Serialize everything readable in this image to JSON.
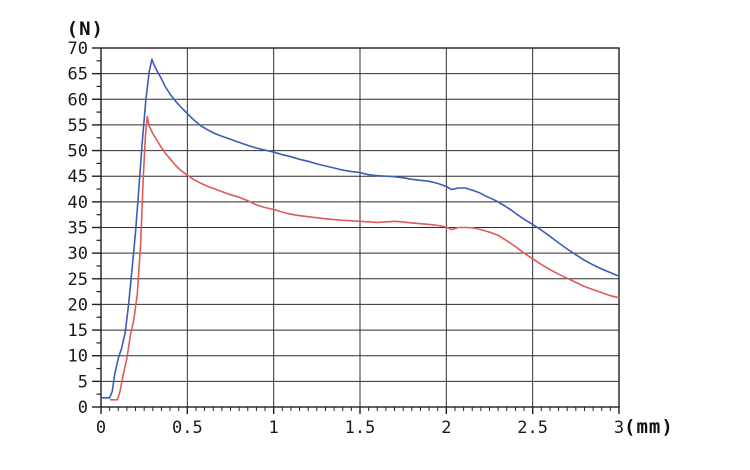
{
  "page": {
    "background_color": "#ffffff"
  },
  "chart_data": {
    "type": "line",
    "title": "",
    "y_unit_label": "(N)",
    "x_unit_label": "(mm)",
    "xlim": [
      0,
      3
    ],
    "ylim": [
      0,
      70
    ],
    "grid": true,
    "legend": "none",
    "x_major_step": 0.5,
    "x_minor_step": 0.05,
    "y_major_step": 5,
    "y_minor_step": 2.5,
    "x_major_ticks": [
      0,
      0.5,
      1,
      1.5,
      2,
      2.5,
      3
    ],
    "x_tick_labels": [
      "0",
      "0.5",
      "1",
      "1.5",
      "2",
      "2.5",
      "3"
    ],
    "y_major_ticks": [
      0,
      5,
      10,
      15,
      20,
      25,
      30,
      35,
      40,
      45,
      50,
      55,
      60,
      65,
      70
    ],
    "y_tick_labels": [
      "0",
      "5",
      "10",
      "15",
      "20",
      "25",
      "30",
      "35",
      "40",
      "45",
      "50",
      "55",
      "60",
      "65",
      "70"
    ],
    "colors": {
      "grid": "#2f2f2f",
      "axis": "#1f1f1f",
      "tick": "#1f1f1f",
      "text": "#1a1a1a",
      "background": "#ffffff"
    },
    "series": [
      {
        "name": "blue-curve",
        "color": "#3b5db8",
        "points": [
          [
            0.0,
            1.8
          ],
          [
            0.05,
            1.8
          ],
          [
            0.065,
            3.0
          ],
          [
            0.08,
            6.5
          ],
          [
            0.1,
            9.5
          ],
          [
            0.12,
            11.5
          ],
          [
            0.14,
            14.5
          ],
          [
            0.16,
            20.0
          ],
          [
            0.18,
            27.0
          ],
          [
            0.2,
            34.0
          ],
          [
            0.22,
            43.0
          ],
          [
            0.24,
            52.0
          ],
          [
            0.26,
            60.0
          ],
          [
            0.28,
            65.5
          ],
          [
            0.295,
            67.8
          ],
          [
            0.31,
            66.5
          ],
          [
            0.33,
            65.2
          ],
          [
            0.35,
            64.0
          ],
          [
            0.37,
            62.6
          ],
          [
            0.4,
            61.0
          ],
          [
            0.43,
            59.7
          ],
          [
            0.46,
            58.6
          ],
          [
            0.5,
            57.2
          ],
          [
            0.54,
            55.9
          ],
          [
            0.58,
            54.8
          ],
          [
            0.62,
            54.0
          ],
          [
            0.66,
            53.3
          ],
          [
            0.7,
            52.8
          ],
          [
            0.75,
            52.2
          ],
          [
            0.8,
            51.6
          ],
          [
            0.85,
            51.0
          ],
          [
            0.9,
            50.5
          ],
          [
            0.95,
            50.1
          ],
          [
            1.0,
            49.7
          ],
          [
            1.05,
            49.2
          ],
          [
            1.1,
            48.8
          ],
          [
            1.15,
            48.3
          ],
          [
            1.2,
            47.9
          ],
          [
            1.25,
            47.4
          ],
          [
            1.3,
            47.0
          ],
          [
            1.35,
            46.6
          ],
          [
            1.4,
            46.2
          ],
          [
            1.45,
            45.9
          ],
          [
            1.5,
            45.7
          ],
          [
            1.55,
            45.3
          ],
          [
            1.6,
            45.1
          ],
          [
            1.65,
            45.0
          ],
          [
            1.7,
            44.9
          ],
          [
            1.75,
            44.7
          ],
          [
            1.8,
            44.4
          ],
          [
            1.85,
            44.2
          ],
          [
            1.9,
            44.0
          ],
          [
            1.95,
            43.6
          ],
          [
            2.0,
            43.0
          ],
          [
            2.03,
            42.4
          ],
          [
            2.07,
            42.7
          ],
          [
            2.11,
            42.7
          ],
          [
            2.15,
            42.3
          ],
          [
            2.19,
            41.8
          ],
          [
            2.23,
            41.1
          ],
          [
            2.27,
            40.5
          ],
          [
            2.3,
            40.0
          ],
          [
            2.34,
            39.2
          ],
          [
            2.38,
            38.3
          ],
          [
            2.42,
            37.3
          ],
          [
            2.46,
            36.4
          ],
          [
            2.5,
            35.6
          ],
          [
            2.55,
            34.5
          ],
          [
            2.6,
            33.3
          ],
          [
            2.65,
            32.0
          ],
          [
            2.7,
            30.8
          ],
          [
            2.75,
            29.7
          ],
          [
            2.8,
            28.6
          ],
          [
            2.85,
            27.7
          ],
          [
            2.9,
            26.9
          ],
          [
            2.95,
            26.2
          ],
          [
            3.0,
            25.5
          ]
        ]
      },
      {
        "name": "red-curve",
        "color": "#e05a5a",
        "points": [
          [
            0.055,
            1.4
          ],
          [
            0.095,
            1.4
          ],
          [
            0.11,
            3.0
          ],
          [
            0.13,
            6.5
          ],
          [
            0.15,
            9.5
          ],
          [
            0.17,
            14.0
          ],
          [
            0.19,
            17.0
          ],
          [
            0.21,
            22.0
          ],
          [
            0.23,
            32.0
          ],
          [
            0.245,
            45.0
          ],
          [
            0.258,
            53.0
          ],
          [
            0.268,
            56.6
          ],
          [
            0.28,
            54.8
          ],
          [
            0.3,
            53.3
          ],
          [
            0.32,
            52.2
          ],
          [
            0.34,
            51.1
          ],
          [
            0.37,
            49.6
          ],
          [
            0.4,
            48.4
          ],
          [
            0.43,
            47.2
          ],
          [
            0.46,
            46.2
          ],
          [
            0.5,
            45.2
          ],
          [
            0.54,
            44.3
          ],
          [
            0.58,
            43.6
          ],
          [
            0.62,
            43.0
          ],
          [
            0.66,
            42.5
          ],
          [
            0.7,
            42.0
          ],
          [
            0.75,
            41.4
          ],
          [
            0.8,
            40.9
          ],
          [
            0.85,
            40.2
          ],
          [
            0.9,
            39.4
          ],
          [
            0.95,
            38.9
          ],
          [
            1.0,
            38.5
          ],
          [
            1.05,
            38.0
          ],
          [
            1.1,
            37.6
          ],
          [
            1.15,
            37.3
          ],
          [
            1.2,
            37.1
          ],
          [
            1.3,
            36.7
          ],
          [
            1.4,
            36.4
          ],
          [
            1.5,
            36.2
          ],
          [
            1.6,
            36.0
          ],
          [
            1.65,
            36.1
          ],
          [
            1.7,
            36.2
          ],
          [
            1.75,
            36.1
          ],
          [
            1.8,
            35.9
          ],
          [
            1.9,
            35.6
          ],
          [
            1.95,
            35.4
          ],
          [
            2.0,
            35.1
          ],
          [
            2.03,
            34.6
          ],
          [
            2.07,
            35.0
          ],
          [
            2.12,
            35.0
          ],
          [
            2.16,
            34.9
          ],
          [
            2.2,
            34.6
          ],
          [
            2.25,
            34.1
          ],
          [
            2.3,
            33.5
          ],
          [
            2.35,
            32.4
          ],
          [
            2.4,
            31.3
          ],
          [
            2.45,
            30.0
          ],
          [
            2.5,
            28.9
          ],
          [
            2.55,
            27.8
          ],
          [
            2.6,
            26.8
          ],
          [
            2.65,
            25.9
          ],
          [
            2.7,
            25.1
          ],
          [
            2.75,
            24.3
          ],
          [
            2.8,
            23.5
          ],
          [
            2.85,
            22.9
          ],
          [
            2.9,
            22.3
          ],
          [
            2.95,
            21.7
          ],
          [
            3.0,
            21.3
          ]
        ]
      }
    ]
  }
}
